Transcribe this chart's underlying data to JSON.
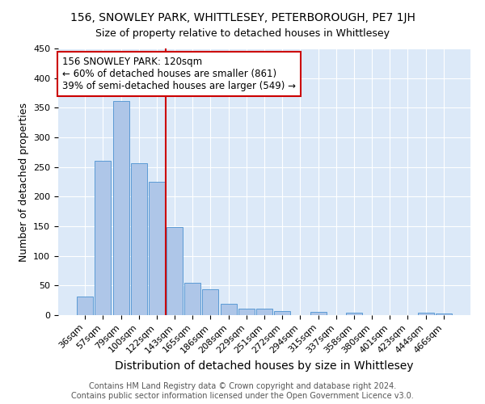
{
  "title": "156, SNOWLEY PARK, WHITTLESEY, PETERBOROUGH, PE7 1JH",
  "subtitle": "Size of property relative to detached houses in Whittlesey",
  "xlabel": "Distribution of detached houses by size in Whittlesey",
  "ylabel": "Number of detached properties",
  "bar_labels": [
    "36sqm",
    "57sqm",
    "79sqm",
    "100sqm",
    "122sqm",
    "143sqm",
    "165sqm",
    "186sqm",
    "208sqm",
    "229sqm",
    "251sqm",
    "272sqm",
    "294sqm",
    "315sqm",
    "337sqm",
    "358sqm",
    "380sqm",
    "401sqm",
    "423sqm",
    "444sqm",
    "466sqm"
  ],
  "bar_values": [
    32,
    260,
    362,
    257,
    225,
    148,
    55,
    43,
    19,
    11,
    11,
    7,
    0,
    6,
    0,
    4,
    0,
    0,
    0,
    4,
    3
  ],
  "bar_color": "#aec6e8",
  "bar_edgecolor": "#5b9bd5",
  "vline_color": "#cc0000",
  "vline_pos": 4.5,
  "annotation_text": "156 SNOWLEY PARK: 120sqm\n← 60% of detached houses are smaller (861)\n39% of semi-detached houses are larger (549) →",
  "annotation_box_color": "white",
  "annotation_box_edgecolor": "#cc0000",
  "ylim": [
    0,
    450
  ],
  "yticks": [
    0,
    50,
    100,
    150,
    200,
    250,
    300,
    350,
    400,
    450
  ],
  "background_color": "#dce9f8",
  "grid_color": "white",
  "footer_line1": "Contains HM Land Registry data © Crown copyright and database right 2024.",
  "footer_line2": "Contains public sector information licensed under the Open Government Licence v3.0.",
  "title_fontsize": 10,
  "xlabel_fontsize": 10,
  "ylabel_fontsize": 9,
  "tick_fontsize": 8,
  "annotation_fontsize": 8.5,
  "footer_fontsize": 7
}
